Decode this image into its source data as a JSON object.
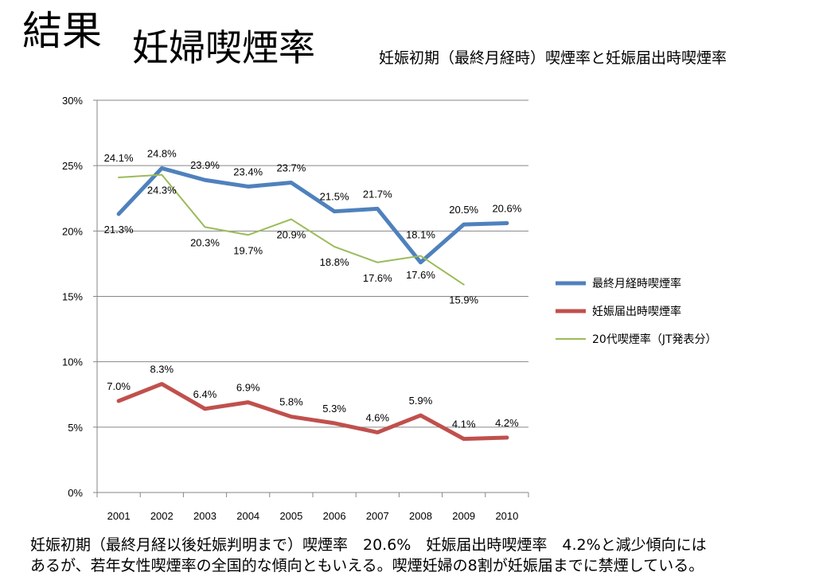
{
  "heading": "結果",
  "title": "妊婦喫煙率",
  "subtitle": "妊娠初期（最終月経時）喫煙率と妊娠届出時喫煙率",
  "note": {
    "line1": "妊娠初期（最終月経以後妊娠判明まで）喫煙率　20.6%　妊娠届出時喫煙率　4.2%と減少傾向には",
    "line2": "あるが、若年女性喫煙率の全国的な傾向ともいえる。喫煙妊婦の8割が妊娠届までに禁煙している。"
  },
  "chart_data": {
    "type": "line",
    "title": "",
    "xlabel": "",
    "ylabel": "",
    "x": [
      "2001",
      "2002",
      "2003",
      "2004",
      "2005",
      "2006",
      "2007",
      "2008",
      "2009",
      "2010"
    ],
    "ylim": [
      0,
      30
    ],
    "yticks": [
      "0%",
      "5%",
      "10%",
      "15%",
      "20%",
      "25%",
      "30%"
    ],
    "grid": true,
    "legend": "right",
    "series": [
      {
        "name": "最終月経時喫煙率",
        "color": "#4f81bd",
        "values": [
          21.3,
          24.8,
          23.9,
          23.4,
          23.7,
          21.5,
          21.7,
          17.6,
          20.5,
          20.6
        ],
        "labels": [
          "21.3%",
          "24.8%",
          "23.9%",
          "23.4%",
          "23.7%",
          "21.5%",
          "21.7%",
          "17.6%",
          "20.5%",
          "20.6%"
        ]
      },
      {
        "name": "妊娠届出時喫煙率",
        "color": "#c0504d",
        "values": [
          7.0,
          8.3,
          6.4,
          6.9,
          5.8,
          5.3,
          4.6,
          5.9,
          4.1,
          4.2
        ],
        "labels": [
          "7.0%",
          "8.3%",
          "6.4%",
          "6.9%",
          "5.8%",
          "5.3%",
          "4.6%",
          "5.9%",
          "4.1%",
          "4.2%"
        ]
      },
      {
        "name": "20代喫煙率（JT発表分）",
        "color": "#9bbb59",
        "values": [
          24.1,
          24.3,
          20.3,
          19.7,
          20.9,
          18.8,
          17.6,
          18.1,
          15.9,
          null
        ],
        "labels": [
          "24.1%",
          "24.3%",
          "20.3%",
          "19.7%",
          "20.9%",
          "18.8%",
          "17.6%",
          "18.1%",
          "15.9%",
          null
        ]
      }
    ]
  }
}
